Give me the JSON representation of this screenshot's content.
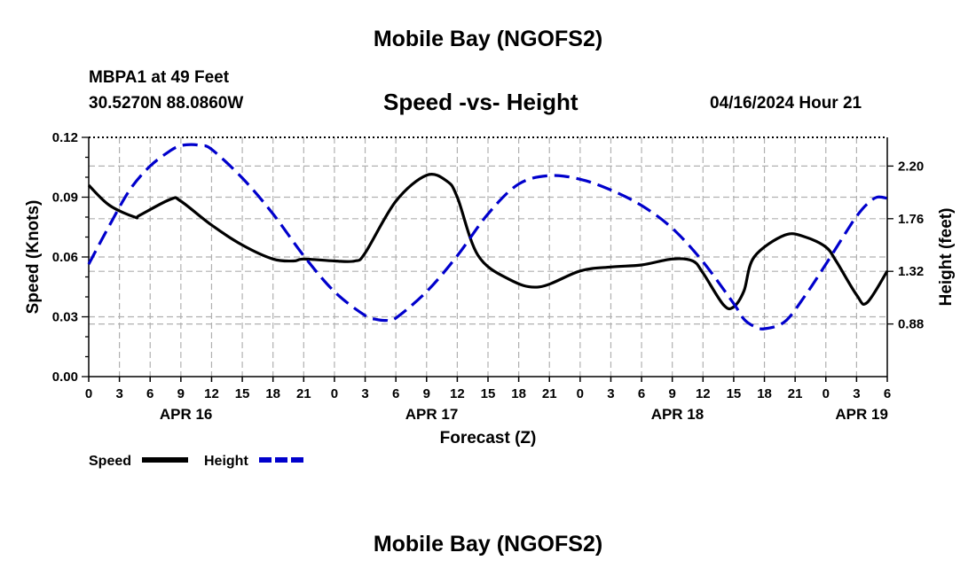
{
  "header": {
    "title": "Mobile Bay (NGOFS2)",
    "station": "MBPA1 at 49 Feet",
    "coords": "30.5270N  88.0860W",
    "plot_title": "Speed -vs- Height",
    "date": "04/16/2024 Hour 21"
  },
  "footer": {
    "title": "Mobile Bay (NGOFS2)"
  },
  "legend": {
    "speed_label": "Speed",
    "height_label": "Height"
  },
  "colors": {
    "speed": "#000000",
    "height": "#0000cc",
    "grid": "#b0b0b0"
  },
  "chart_data": {
    "type": "line",
    "title": "Speed -vs- Height",
    "xlabel": "Forecast (Z)",
    "ylabel_left": "Speed (Knots)",
    "ylabel_right": "Height (feet)",
    "x_range_hours": [
      0,
      78
    ],
    "x_tick_labels": [
      "0",
      "3",
      "6",
      "9",
      "12",
      "15",
      "18",
      "21",
      "0",
      "3",
      "6",
      "9",
      "12",
      "15",
      "18",
      "21",
      "0",
      "3",
      "6",
      "9",
      "12",
      "15",
      "18",
      "21",
      "0",
      "3",
      "6"
    ],
    "date_labels": [
      {
        "label": "APR 16",
        "hour": 9.5
      },
      {
        "label": "APR 17",
        "hour": 33.5
      },
      {
        "label": "APR 18",
        "hour": 57.5
      },
      {
        "label": "APR 19",
        "hour": 75.5
      }
    ],
    "y_left": {
      "range": [
        0,
        0.12
      ],
      "ticks": [
        0,
        0.03,
        0.06,
        0.09,
        0.12
      ],
      "tick_labels": [
        "0.00",
        "0.03",
        "0.06",
        "0.09",
        "0.12"
      ]
    },
    "y_right": {
      "range": [
        0.44,
        2.44
      ],
      "ticks": [
        0.88,
        1.32,
        1.76,
        2.2
      ],
      "tick_labels": [
        "0.88",
        "1.32",
        "1.76",
        "2.20"
      ]
    },
    "series": [
      {
        "name": "Speed",
        "axis": "left",
        "style": "solid",
        "x": [
          0,
          2,
          4.5,
          5,
          8,
          9,
          12,
          15,
          18,
          20,
          21,
          24,
          26,
          27,
          30,
          33,
          35,
          36,
          38,
          41,
          44,
          48,
          51,
          54,
          57,
          59,
          60,
          62,
          63,
          64,
          65,
          68,
          70,
          72,
          73,
          75,
          76,
          78
        ],
        "values": [
          0.096,
          0.086,
          0.08,
          0.081,
          0.089,
          0.088,
          0.076,
          0.066,
          0.059,
          0.058,
          0.059,
          0.058,
          0.058,
          0.062,
          0.088,
          0.101,
          0.098,
          0.09,
          0.061,
          0.049,
          0.045,
          0.053,
          0.055,
          0.056,
          0.059,
          0.058,
          0.052,
          0.036,
          0.035,
          0.043,
          0.06,
          0.071,
          0.07,
          0.065,
          0.058,
          0.041,
          0.037,
          0.053
        ]
      },
      {
        "name": "Height",
        "axis": "right",
        "style": "dashed",
        "x": [
          0,
          2,
          4,
          6,
          8,
          9,
          10,
          11,
          12,
          15,
          18,
          21,
          24,
          27,
          28,
          29,
          30,
          33,
          36,
          39,
          42,
          45,
          48,
          51,
          54,
          57,
          60,
          63,
          64,
          65,
          66,
          68,
          70,
          72,
          74,
          75,
          76,
          77,
          78
        ],
        "values": [
          1.38,
          1.7,
          2.0,
          2.2,
          2.33,
          2.37,
          2.38,
          2.37,
          2.34,
          2.1,
          1.8,
          1.45,
          1.15,
          0.95,
          0.92,
          0.91,
          0.93,
          1.15,
          1.45,
          1.8,
          2.05,
          2.12,
          2.09,
          2.0,
          1.87,
          1.68,
          1.4,
          1.05,
          0.92,
          0.86,
          0.84,
          0.9,
          1.12,
          1.38,
          1.65,
          1.78,
          1.88,
          1.94,
          1.93
        ]
      }
    ]
  }
}
